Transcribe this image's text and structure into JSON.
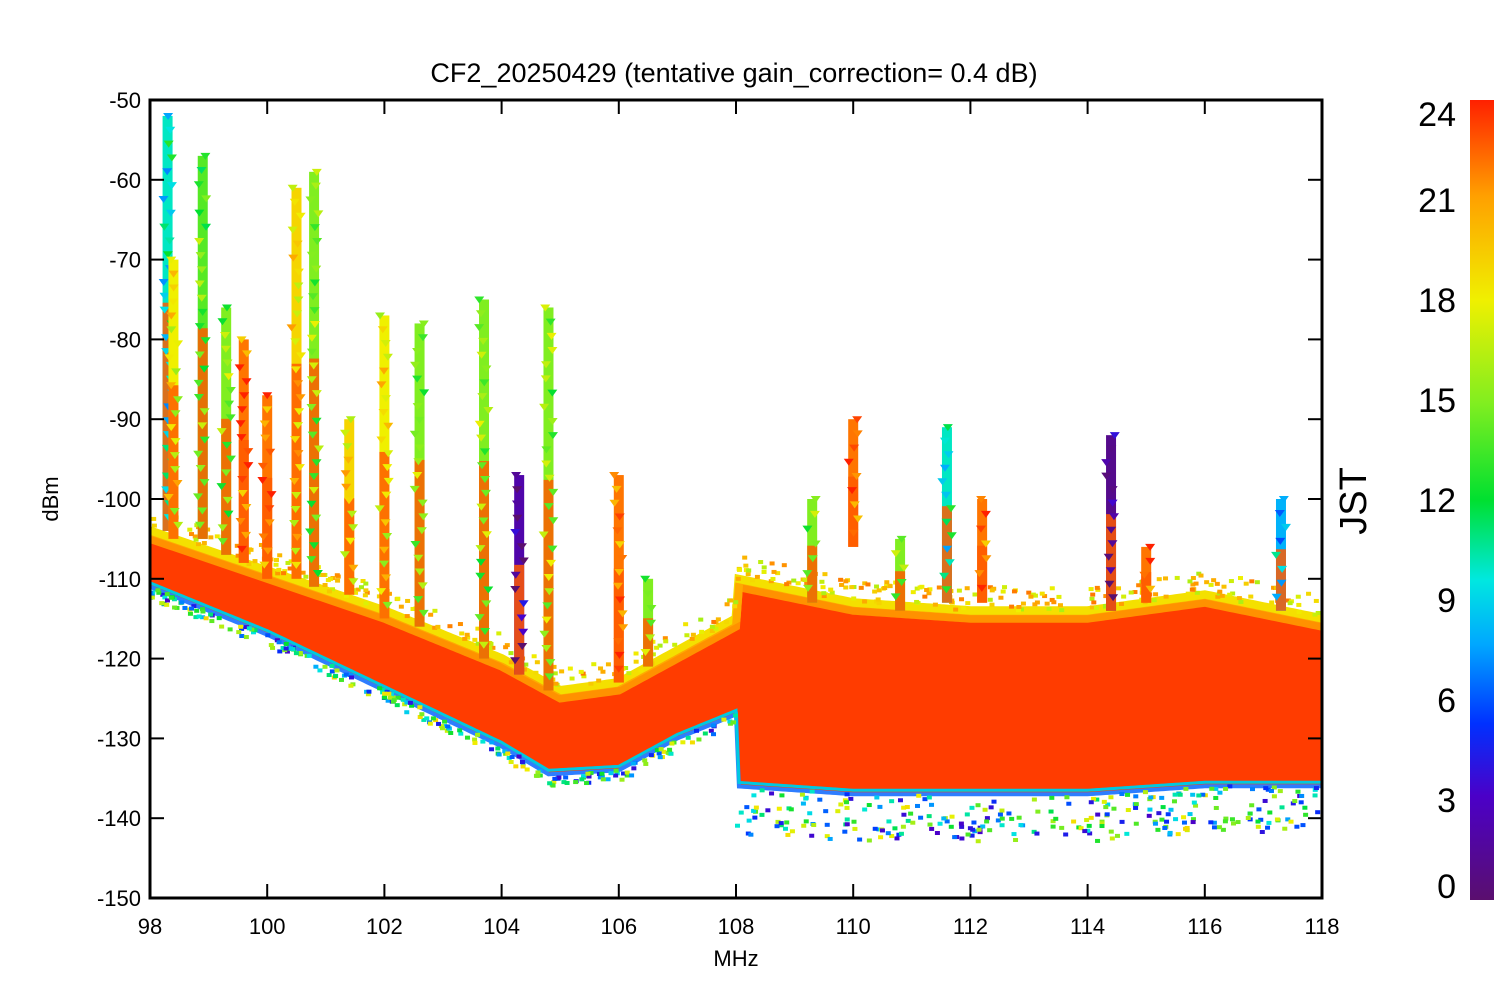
{
  "chart_data": {
    "type": "scatter",
    "title": "CF2_20250429 (tentative gain_correction=  0.4 dB)",
    "xlabel": "MHz",
    "ylabel": "dBm",
    "xlim": [
      98,
      118
    ],
    "ylim": [
      -150,
      -50
    ],
    "xticks": [
      "98",
      "100",
      "102",
      "104",
      "106",
      "108",
      "110",
      "112",
      "114",
      "116",
      "118"
    ],
    "yticks": [
      "-50",
      "-60",
      "-70",
      "-80",
      "-90",
      "-100",
      "-110",
      "-120",
      "-130",
      "-140",
      "-150"
    ],
    "colorbar": {
      "label": "JST",
      "range": [
        0,
        24
      ],
      "ticks": [
        "24",
        "21",
        "18",
        "15",
        "12",
        "9",
        "6",
        "3",
        "0"
      ],
      "colormap": "rainbow"
    },
    "noise_floor": {
      "x": [
        98,
        100,
        102,
        104,
        104.8,
        106,
        107,
        108,
        108.01,
        110,
        112,
        114,
        116,
        118
      ],
      "y": [
        -111,
        -117,
        -124,
        -131,
        -134.5,
        -134,
        -130,
        -127,
        -136,
        -137,
        -137,
        -137,
        -136,
        -136
      ]
    },
    "noise_top": {
      "x": [
        98,
        100,
        102,
        104,
        105,
        106,
        107,
        108,
        108.01,
        110,
        112,
        114,
        116,
        118
      ],
      "y": [
        -104,
        -109,
        -114,
        -120,
        -124,
        -123,
        -119,
        -115,
        -110,
        -113,
        -114,
        -114,
        -112,
        -115
      ]
    },
    "series": [
      {
        "x": 98.3,
        "y_top": -52,
        "y_bottom": -104,
        "jst": 10
      },
      {
        "x": 98.4,
        "y_top": -70,
        "y_bottom": -105,
        "jst": 18
      },
      {
        "x": 98.9,
        "y_top": -57,
        "y_bottom": -105,
        "jst": 14
      },
      {
        "x": 99.3,
        "y_top": -76,
        "y_bottom": -107,
        "jst": 15
      },
      {
        "x": 99.6,
        "y_top": -80,
        "y_bottom": -108,
        "jst": 22
      },
      {
        "x": 100.0,
        "y_top": -87,
        "y_bottom": -110,
        "jst": 22
      },
      {
        "x": 100.5,
        "y_top": -61,
        "y_bottom": -110,
        "jst": 19
      },
      {
        "x": 100.8,
        "y_top": -59,
        "y_bottom": -111,
        "jst": 15
      },
      {
        "x": 101.4,
        "y_top": -90,
        "y_bottom": -112,
        "jst": 19
      },
      {
        "x": 102.0,
        "y_top": -77,
        "y_bottom": -115,
        "jst": 18
      },
      {
        "x": 102.6,
        "y_top": -78,
        "y_bottom": -116,
        "jst": 15
      },
      {
        "x": 103.7,
        "y_top": -75,
        "y_bottom": -120,
        "jst": 15
      },
      {
        "x": 104.3,
        "y_top": -97,
        "y_bottom": -122,
        "jst": 2
      },
      {
        "x": 104.8,
        "y_top": -76,
        "y_bottom": -124,
        "jst": 15
      },
      {
        "x": 106.0,
        "y_top": -97,
        "y_bottom": -123,
        "jst": 22
      },
      {
        "x": 106.5,
        "y_top": -110,
        "y_bottom": -121,
        "jst": 15
      },
      {
        "x": 109.3,
        "y_top": -100,
        "y_bottom": -113,
        "jst": 15
      },
      {
        "x": 110.0,
        "y_top": -90,
        "y_bottom": -106,
        "jst": 22
      },
      {
        "x": 110.8,
        "y_top": -105,
        "y_bottom": -114,
        "jst": 15
      },
      {
        "x": 111.6,
        "y_top": -91,
        "y_bottom": -113,
        "jst": 10
      },
      {
        "x": 112.2,
        "y_top": -100,
        "y_bottom": -113,
        "jst": 22
      },
      {
        "x": 114.4,
        "y_top": -92,
        "y_bottom": -114,
        "jst": 1
      },
      {
        "x": 115.0,
        "y_top": -106,
        "y_bottom": -113,
        "jst": 22
      },
      {
        "x": 117.3,
        "y_top": -100,
        "y_bottom": -114,
        "jst": 8
      }
    ],
    "grid": false,
    "legend": "colorbar-right"
  }
}
